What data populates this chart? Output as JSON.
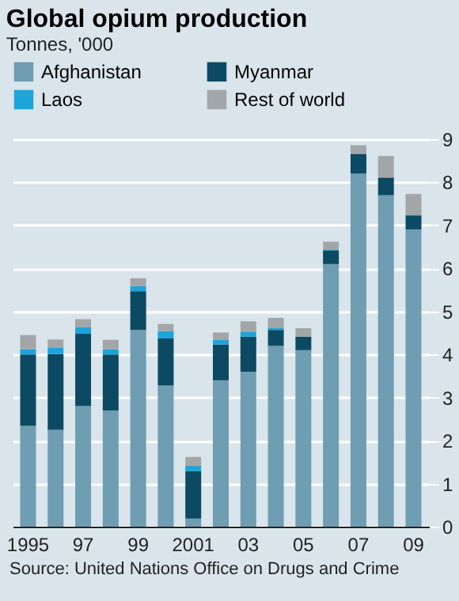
{
  "chart_data": {
    "type": "bar",
    "title": "Global opium production",
    "ylabel": "Tonnes, '000",
    "categories": [
      "1995",
      null,
      "97",
      null,
      "99",
      null,
      "2001",
      null,
      "03",
      null,
      "05",
      null,
      "07",
      null,
      "09"
    ],
    "stacked": true,
    "series": [
      {
        "name": "Afghanistan",
        "color": "#6f9db2",
        "values": [
          2.34,
          2.25,
          2.8,
          2.7,
          4.57,
          3.28,
          0.19,
          3.4,
          3.6,
          4.2,
          4.1,
          6.1,
          8.2,
          7.7,
          6.9
        ]
      },
      {
        "name": "Myanmar",
        "color": "#0b4a62",
        "values": [
          1.66,
          1.76,
          1.68,
          1.3,
          0.9,
          1.09,
          1.1,
          0.83,
          0.81,
          0.37,
          0.31,
          0.32,
          0.46,
          0.41,
          0.33
        ]
      },
      {
        "name": "Laos",
        "color": "#1ea4d9",
        "values": [
          0.12,
          0.14,
          0.15,
          0.12,
          0.12,
          0.17,
          0.13,
          0.11,
          0.12,
          0.04,
          null,
          0.02,
          null,
          null,
          null
        ]
      },
      {
        "name": "Rest of world",
        "color": "#a3a6a8",
        "values": [
          0.33,
          0.2,
          0.19,
          0.22,
          0.18,
          0.17,
          0.2,
          0.17,
          0.24,
          0.24,
          0.2,
          0.18,
          0.2,
          0.5,
          0.5
        ]
      }
    ],
    "ylim": [
      0,
      9
    ],
    "yticks": [
      0,
      1,
      2,
      3,
      4,
      5,
      6,
      7,
      8,
      9
    ],
    "grid": "y",
    "legend": "top",
    "annotations": [
      "Source: United Nations Office on Drugs and Crime"
    ]
  }
}
